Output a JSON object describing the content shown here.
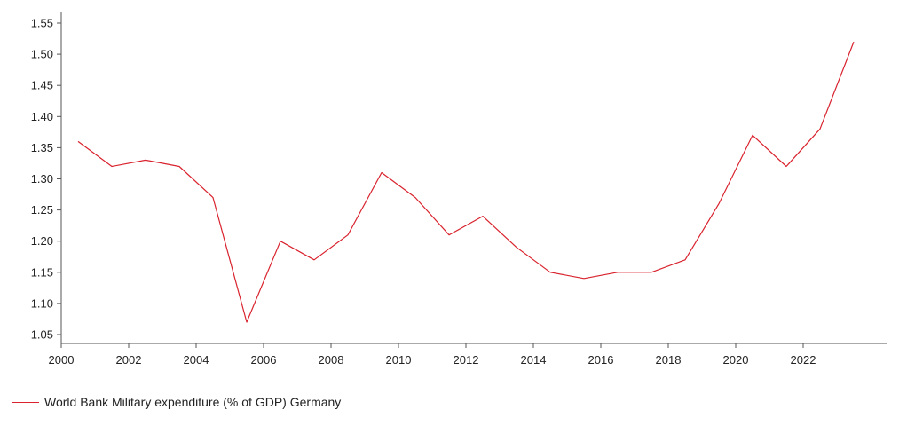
{
  "chart_data": {
    "type": "line",
    "title": "",
    "xlabel": "",
    "ylabel": "",
    "x": [
      2000.5,
      2001.5,
      2002.5,
      2003.5,
      2004.5,
      2005.5,
      2006.5,
      2007.5,
      2008.5,
      2009.5,
      2010.5,
      2011.5,
      2012.5,
      2013.5,
      2014.5,
      2015.5,
      2016.5,
      2017.5,
      2018.5,
      2019.5,
      2020.5,
      2021.5,
      2022.5,
      2023.5
    ],
    "series": [
      {
        "name": "World Bank Military expenditure (% of GDP) Germany",
        "color": "#d9232e",
        "values": [
          1.36,
          1.32,
          1.33,
          1.32,
          1.27,
          1.07,
          1.2,
          1.17,
          1.21,
          1.31,
          1.27,
          1.21,
          1.24,
          1.19,
          1.15,
          1.14,
          1.15,
          1.15,
          1.17,
          1.26,
          1.37,
          1.32,
          1.38,
          1.52
        ]
      }
    ],
    "xlim": [
      2000,
      2024.5
    ],
    "ylim": [
      1.05,
      1.55
    ],
    "xticks": [
      2000,
      2002,
      2004,
      2006,
      2008,
      2010,
      2012,
      2014,
      2016,
      2018,
      2020,
      2022
    ],
    "xtick_labels": [
      "2000",
      "2002",
      "2004",
      "2006",
      "2008",
      "2010",
      "2012",
      "2014",
      "2016",
      "2018",
      "2020",
      "2022"
    ],
    "yticks": [
      1.05,
      1.1,
      1.15,
      1.2,
      1.25,
      1.3,
      1.35,
      1.4,
      1.45,
      1.5,
      1.55
    ],
    "ytick_labels": [
      "1.05",
      "1.10",
      "1.15",
      "1.20",
      "1.25",
      "1.30",
      "1.35",
      "1.40",
      "1.45",
      "1.50",
      "1.55"
    ],
    "grid": false,
    "legend_position": "bottom-left"
  }
}
